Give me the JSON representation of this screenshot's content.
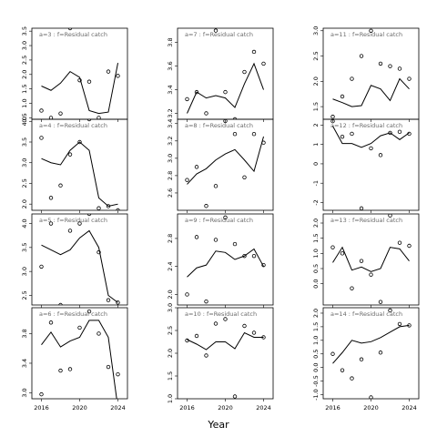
{
  "chart_data": {
    "type": "line",
    "layout": "multi-panel grid, 4 rows x 3 columns",
    "xlabel": "Year",
    "x_ticks": [
      2016,
      2020,
      2024
    ],
    "xlim": [
      2015,
      2025
    ],
    "x": [
      2016,
      2017,
      2018,
      2019,
      2020,
      2021,
      2022,
      2023,
      2024
    ],
    "legend": "none",
    "grid": false,
    "line_series_description": "solid line",
    "point_series_description": "open circles",
    "panels": [
      {
        "title": "a=3  :  f=Residual catch",
        "ylim": [
          0.45,
          3.6
        ],
        "yticks": [
          0.5,
          1.0,
          1.5,
          2.0,
          2.5,
          3.0,
          3.5
        ],
        "line": [
          1.6,
          1.45,
          1.7,
          2.1,
          1.9,
          0.75,
          0.65,
          0.7,
          2.4
        ],
        "points": [
          [
            2016,
            0.75
          ],
          [
            2017,
            0.5
          ],
          [
            2018,
            0.65
          ],
          [
            2019,
            3.6
          ],
          [
            2020,
            1.8
          ],
          [
            2021,
            1.75
          ],
          [
            2022,
            0.5
          ],
          [
            2023,
            2.1
          ],
          [
            2024,
            1.95
          ]
        ]
      },
      {
        "title": "a=7  :  f=Residual catch",
        "ylim": [
          3.15,
          3.92
        ],
        "yticks": [
          3.2,
          3.4,
          3.6,
          3.8
        ],
        "line": [
          3.2,
          3.38,
          3.33,
          3.35,
          3.33,
          3.25,
          3.45,
          3.62,
          3.4
        ],
        "points": [
          [
            2016,
            3.32
          ],
          [
            2017,
            3.38
          ],
          [
            2018,
            3.2
          ],
          [
            2019,
            3.9
          ],
          [
            2020,
            3.38
          ],
          [
            2021,
            3.15
          ],
          [
            2022,
            3.55
          ],
          [
            2023,
            3.72
          ],
          [
            2024,
            3.62
          ]
        ]
      },
      {
        "title": "a=11  :  f=Residual catch",
        "ylim": [
          1.25,
          3.05
        ],
        "yticks": [
          1.5,
          2.0,
          2.5,
          3.0
        ],
        "line": [
          1.65,
          1.58,
          1.5,
          1.52,
          1.92,
          1.85,
          1.62,
          2.05,
          1.85
        ],
        "points": [
          [
            2016,
            1.3
          ],
          [
            2017,
            1.7
          ],
          [
            2018,
            2.05
          ],
          [
            2019,
            2.5
          ],
          [
            2020,
            3.0
          ],
          [
            2021,
            2.35
          ],
          [
            2022,
            2.3
          ],
          [
            2023,
            2.25
          ],
          [
            2024,
            2.05
          ]
        ]
      },
      {
        "title": "a=4  :  f=Residual catch",
        "ylim": [
          1.85,
          4.05
        ],
        "yticks": [
          2.0,
          2.5,
          3.0,
          3.5,
          4.0
        ],
        "line": [
          3.1,
          3.0,
          2.95,
          3.3,
          3.5,
          3.3,
          2.15,
          1.95,
          2.0
        ],
        "points": [
          [
            2016,
            3.6
          ],
          [
            2017,
            2.15
          ],
          [
            2018,
            2.45
          ],
          [
            2019,
            3.2
          ],
          [
            2020,
            3.5
          ],
          [
            2021,
            4.05
          ],
          [
            2022,
            1.9
          ],
          [
            2023,
            1.95
          ],
          [
            2024,
            1.85
          ]
        ]
      },
      {
        "title": "a=8  :  f=Residual catch",
        "ylim": [
          2.4,
          3.45
        ],
        "yticks": [
          2.6,
          2.8,
          3.0,
          3.2,
          3.4
        ],
        "line": [
          2.7,
          2.82,
          2.88,
          2.98,
          3.05,
          3.1,
          2.98,
          2.85,
          3.25
        ],
        "points": [
          [
            2016,
            2.75
          ],
          [
            2017,
            2.9
          ],
          [
            2018,
            2.45
          ],
          [
            2019,
            2.68
          ],
          [
            2020,
            3.43
          ],
          [
            2021,
            3.28
          ],
          [
            2022,
            2.78
          ],
          [
            2023,
            3.28
          ],
          [
            2024,
            3.18
          ]
        ]
      },
      {
        "title": "a=12  :  f=Residual catch",
        "ylim": [
          -2.4,
          2.3
        ],
        "yticks": [
          -2,
          -1,
          0,
          1,
          2
        ],
        "line": [
          1.95,
          1.05,
          1.05,
          0.85,
          1.05,
          1.45,
          1.6,
          1.25,
          1.6
        ],
        "points": [
          [
            2016,
            2.2
          ],
          [
            2017,
            1.4
          ],
          [
            2018,
            1.55
          ],
          [
            2019,
            -2.3
          ],
          [
            2020,
            0.8
          ],
          [
            2021,
            0.45
          ],
          [
            2022,
            1.6
          ],
          [
            2023,
            1.65
          ],
          [
            2024,
            1.55
          ]
        ]
      },
      {
        "title": "a=5  :  f=Residual catch",
        "ylim": [
          2.3,
          4.2
        ],
        "yticks": [
          2.5,
          3.0,
          3.5,
          4.0
        ],
        "line": [
          3.55,
          3.45,
          3.35,
          3.45,
          3.7,
          3.85,
          3.5,
          2.5,
          2.35
        ],
        "points": [
          [
            2016,
            3.1
          ],
          [
            2017,
            4.0
          ],
          [
            2018,
            2.3
          ],
          [
            2019,
            3.85
          ],
          [
            2020,
            4.0
          ],
          [
            2021,
            4.2
          ],
          [
            2022,
            3.4
          ],
          [
            2023,
            2.4
          ],
          [
            2024,
            2.35
          ]
        ]
      },
      {
        "title": "a=9  :  f=Residual catch",
        "ylim": [
          1.85,
          3.15
        ],
        "yticks": [
          2.0,
          2.4,
          2.8
        ],
        "line": [
          2.25,
          2.38,
          2.42,
          2.62,
          2.6,
          2.5,
          2.55,
          2.65,
          2.4
        ],
        "points": [
          [
            2016,
            2.0
          ],
          [
            2017,
            2.82
          ],
          [
            2018,
            1.9
          ],
          [
            2019,
            2.78
          ],
          [
            2020,
            3.1
          ],
          [
            2021,
            2.72
          ],
          [
            2022,
            2.55
          ],
          [
            2023,
            2.55
          ],
          [
            2024,
            2.42
          ]
        ]
      },
      {
        "title": "a=13  :  f=Residual catch",
        "ylim": [
          -0.7,
          2.3
        ],
        "yticks": [
          0.0,
          0.5,
          1.0,
          1.5,
          2.0
        ],
        "line": [
          0.7,
          1.2,
          0.45,
          0.55,
          0.4,
          0.5,
          1.2,
          1.15,
          0.75
        ],
        "points": [
          [
            2016,
            1.2
          ],
          [
            2017,
            1.0
          ],
          [
            2018,
            -0.15
          ],
          [
            2019,
            0.75
          ],
          [
            2020,
            0.3
          ],
          [
            2021,
            -0.6
          ],
          [
            2022,
            2.25
          ],
          [
            2023,
            1.35
          ],
          [
            2024,
            1.25
          ]
        ]
      },
      {
        "title": "a=6  :  f=Residual catch",
        "ylim": [
          2.92,
          4.15
        ],
        "yticks": [
          3.0,
          3.4,
          3.8
        ],
        "line": [
          3.65,
          3.82,
          3.62,
          3.7,
          3.75,
          3.98,
          3.98,
          3.75,
          2.8
        ],
        "points": [
          [
            2016,
            2.98
          ],
          [
            2017,
            3.95
          ],
          [
            2018,
            3.3
          ],
          [
            2019,
            3.32
          ],
          [
            2020,
            3.88
          ],
          [
            2021,
            4.1
          ],
          [
            2022,
            3.8
          ],
          [
            2023,
            3.35
          ],
          [
            2024,
            3.25
          ]
        ]
      },
      {
        "title": "a=10  :  f=Residual catch",
        "ylim": [
          1.0,
          3.0
        ],
        "yticks": [
          1.0,
          1.5,
          2.0,
          2.5,
          3.0
        ],
        "line": [
          2.3,
          2.2,
          2.08,
          2.25,
          2.25,
          2.1,
          2.45,
          2.35,
          2.35
        ],
        "points": [
          [
            2016,
            2.28
          ],
          [
            2017,
            2.38
          ],
          [
            2018,
            1.95
          ],
          [
            2019,
            2.65
          ],
          [
            2020,
            2.75
          ],
          [
            2021,
            1.05
          ],
          [
            2022,
            2.6
          ],
          [
            2023,
            2.45
          ],
          [
            2024,
            2.35
          ]
        ]
      },
      {
        "title": "a=14  :  f=Residual catch",
        "ylim": [
          -1.15,
          2.2
        ],
        "yticks": [
          -1.0,
          -0.5,
          0.0,
          0.5,
          1.0,
          1.5,
          2.0
        ],
        "line": [
          0.15,
          0.55,
          1.0,
          0.9,
          0.95,
          1.1,
          1.3,
          1.5,
          1.55
        ],
        "points": [
          [
            2016,
            0.5
          ],
          [
            2017,
            -0.1
          ],
          [
            2018,
            -0.4
          ],
          [
            2019,
            0.3
          ],
          [
            2020,
            -1.1
          ],
          [
            2021,
            0.55
          ],
          [
            2022,
            2.1
          ],
          [
            2023,
            1.6
          ],
          [
            2024,
            1.55
          ]
        ]
      }
    ]
  }
}
